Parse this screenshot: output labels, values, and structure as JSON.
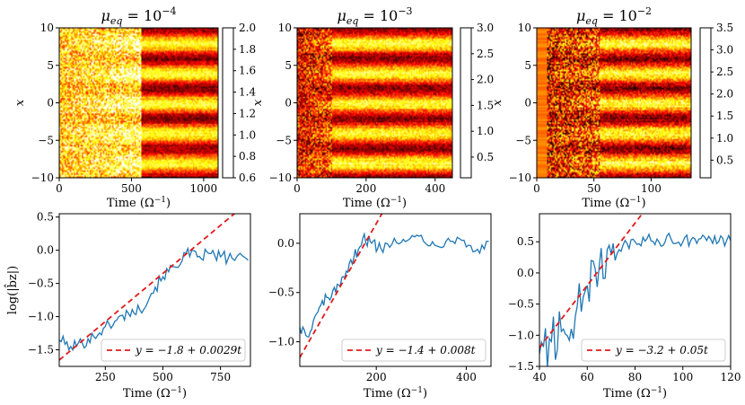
{
  "figure": {
    "heatmap_titles": [
      {
        "base": "μ",
        "sub": "eq",
        "mid": " = 10",
        "exp": "−4"
      },
      {
        "base": "μ",
        "sub": "eq",
        "mid": " = 10",
        "exp": "−3"
      },
      {
        "base": "μ",
        "sub": "eq",
        "mid": " = 10",
        "exp": "−2"
      }
    ],
    "time_label": {
      "text": "Time (Ω",
      "exp": "−1",
      "close": ")"
    },
    "heat_ylabel": "x",
    "line_ylabel": "log(|b̂z|)"
  },
  "chart_data": [
    {
      "type": "heatmap",
      "title": "μeq = 10^-4",
      "xlabel": "Time (Ω^-1)",
      "ylabel": "x",
      "xlim": [
        0,
        1100
      ],
      "ylim": [
        -10,
        10
      ],
      "xticks": [
        0,
        500,
        1000
      ],
      "yticks": [
        -10,
        -5,
        0,
        5,
        10
      ],
      "colorbar": {
        "min": 0.6,
        "max": 2.0,
        "ticks": [
          "0.6",
          "0.8",
          "1.0",
          "1.2",
          "1.4",
          "1.6",
          "1.8",
          "2.0"
        ],
        "colormap": "hot"
      },
      "bands": [
        -8,
        -4,
        0,
        4,
        8
      ],
      "transition_time": 560,
      "band_period": 4,
      "noise_level": 0.9
    },
    {
      "type": "heatmap",
      "title": "μeq = 10^-3",
      "xlabel": "Time (Ω^-1)",
      "ylabel": "x",
      "xlim": [
        0,
        450
      ],
      "ylim": [
        -10,
        10
      ],
      "xticks": [
        0,
        200,
        400
      ],
      "yticks": [
        -10,
        -5,
        0,
        5,
        10
      ],
      "colorbar": {
        "min": 0.1,
        "max": 3.0,
        "ticks": [
          "0.5",
          "1.0",
          "1.5",
          "2.0",
          "2.5",
          "3.0"
        ],
        "colormap": "hot"
      },
      "bands": [
        -8,
        -4,
        0,
        4,
        8
      ],
      "transition_time": 100,
      "band_period": 4,
      "noise_level": 1.0
    },
    {
      "type": "heatmap",
      "title": "μeq = 10^-2",
      "xlabel": "Time (Ω^-1)",
      "ylabel": "x",
      "xlim": [
        0,
        135
      ],
      "ylim": [
        -10,
        10
      ],
      "xticks": [
        0,
        50,
        100
      ],
      "yticks": [
        -10,
        -5,
        0,
        5,
        10
      ],
      "colorbar": {
        "min": 0.1,
        "max": 3.5,
        "ticks": [
          "0.5",
          "1.0",
          "1.5",
          "2.0",
          "2.5",
          "3.0",
          "3.5"
        ],
        "colormap": "hot"
      },
      "bands": [
        -8,
        -4,
        0,
        4,
        8
      ],
      "transition_time": 55,
      "band_period": 4,
      "noise_level": 1.2
    },
    {
      "type": "line",
      "xlabel": "Time (Ω^-1)",
      "ylabel": "log(|b̂z|)",
      "xlim": [
        50,
        880
      ],
      "ylim": [
        -1.75,
        0.55
      ],
      "xticks": [
        250,
        500,
        750
      ],
      "yticks": [
        -1.5,
        -1.0,
        -0.5,
        0.0,
        0.5
      ],
      "xtick_labels": [
        "250",
        "500",
        "750"
      ],
      "ytick_labels": [
        "−1.5",
        "−1.0",
        "−0.5",
        "0.0",
        "0.5"
      ],
      "series": [
        {
          "name": "log(|b̂z|)",
          "color": "#1f77b4",
          "x": [
            50,
            100,
            150,
            200,
            250,
            300,
            350,
            400,
            450,
            500,
            550,
            600,
            650,
            700,
            750,
            800,
            870
          ],
          "y": [
            -1.35,
            -1.45,
            -1.4,
            -1.3,
            -1.15,
            -1.05,
            -0.95,
            -0.9,
            -0.65,
            -0.4,
            -0.25,
            -0.05,
            -0.1,
            -0.05,
            -0.1,
            -0.12,
            -0.15
          ]
        },
        {
          "name": "y = −1.8 + 0.0029t",
          "color": "#e31a1c",
          "style": "dashed",
          "intercept": -1.8,
          "slope": 0.0029
        }
      ],
      "legend_label": "y = −1.8 + 0.0029t",
      "legend_loc": "lower-right"
    },
    {
      "type": "line",
      "xlabel": "Time (Ω^-1)",
      "ylabel": "",
      "xlim": [
        30,
        455
      ],
      "ylim": [
        -1.25,
        0.3
      ],
      "xticks": [
        200,
        400
      ],
      "yticks": [
        -1.0,
        -0.5,
        0.0
      ],
      "xtick_labels": [
        "200",
        "400"
      ],
      "ytick_labels": [
        "−1.0",
        "−0.5",
        "0.0"
      ],
      "series": [
        {
          "name": "log(|b̂z|)",
          "color": "#1f77b4",
          "x": [
            30,
            50,
            70,
            90,
            110,
            130,
            150,
            170,
            190,
            210,
            240,
            270,
            300,
            330,
            360,
            390,
            420,
            450
          ],
          "y": [
            -0.85,
            -0.95,
            -0.7,
            -0.55,
            -0.5,
            -0.35,
            -0.15,
            0.05,
            0.0,
            -0.05,
            0.05,
            0.03,
            0.08,
            -0.02,
            0.05,
            0.03,
            -0.08,
            0.02
          ]
        },
        {
          "name": "y = −1.4 + 0.008t",
          "color": "#e31a1c",
          "style": "dashed",
          "intercept": -1.4,
          "slope": 0.008
        }
      ],
      "legend_label": "y = −1.4 + 0.008t",
      "legend_loc": "lower-right"
    },
    {
      "type": "line",
      "xlabel": "Time (Ω^-1)",
      "ylabel": "",
      "xlim": [
        40,
        120
      ],
      "ylim": [
        -1.5,
        0.95
      ],
      "xticks": [
        40,
        60,
        80,
        100,
        120
      ],
      "yticks": [
        -1.5,
        -1.0,
        -0.5,
        0.0,
        0.5
      ],
      "xtick_labels": [
        "40",
        "60",
        "80",
        "100",
        "120"
      ],
      "ytick_labels": [
        "−1.5",
        "−1.0",
        "−0.5",
        "0.0",
        "0.5"
      ],
      "series": [
        {
          "name": "log(|b̂z|)",
          "color": "#1f77b4",
          "x": [
            40,
            45,
            50,
            55,
            60,
            65,
            70,
            75,
            80,
            85,
            90,
            95,
            100,
            105,
            110,
            115,
            120
          ],
          "y": [
            -1.3,
            -1.1,
            -0.9,
            -0.7,
            -0.2,
            0.1,
            0.3,
            0.45,
            0.5,
            0.55,
            0.5,
            0.55,
            0.5,
            0.55,
            0.52,
            0.5,
            0.52
          ]
        },
        {
          "name": "y = −3.2 + 0.05t",
          "color": "#e31a1c",
          "style": "dashed",
          "intercept": -3.2,
          "slope": 0.05
        }
      ],
      "legend_label": "y = −3.2 + 0.05t",
      "legend_loc": "lower-right"
    }
  ]
}
